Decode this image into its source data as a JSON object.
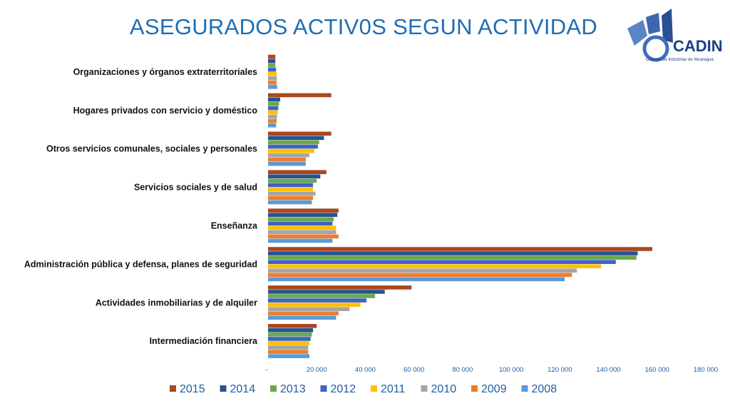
{
  "title": "ASEGURADOS ACTIV0S SEGUN ACTIVIDAD",
  "logo": {
    "name": "CADIN",
    "subtitle": "Cámara de Industrias de Nicaragua"
  },
  "chart_data": {
    "type": "bar",
    "orientation": "horizontal",
    "categories": [
      "Intermediación financiera",
      "Actividades inmobiliarias y de alquiler",
      "Administración pública y defensa, planes de seguridad",
      "Enseñanza",
      "Servicios sociales y de salud",
      "Otros servicios comunales, sociales y personales",
      "Hogares privados con servicio y doméstico",
      "Organizaciones y órganos extraterritoriales"
    ],
    "series": [
      {
        "name": "2015",
        "color": "#a9471f",
        "values": [
          20000,
          59000,
          158000,
          29000,
          24000,
          26000,
          26000,
          3000
        ]
      },
      {
        "name": "2014",
        "color": "#27548f",
        "values": [
          18500,
          48000,
          152000,
          28500,
          21500,
          23000,
          5000,
          3000
        ]
      },
      {
        "name": "2013",
        "color": "#6aa84f",
        "values": [
          18000,
          44000,
          151500,
          27000,
          20000,
          21000,
          4500,
          3000
        ]
      },
      {
        "name": "2012",
        "color": "#3f63c4",
        "values": [
          17500,
          40500,
          143000,
          26500,
          18500,
          20500,
          4200,
          3300
        ]
      },
      {
        "name": "2011",
        "color": "#ffc000",
        "values": [
          17000,
          38000,
          137000,
          28000,
          18500,
          19000,
          4000,
          3600
        ]
      },
      {
        "name": "2010",
        "color": "#a5a5a5",
        "values": [
          16500,
          33500,
          127000,
          28000,
          19500,
          17000,
          3700,
          3600
        ]
      },
      {
        "name": "2009",
        "color": "#ed7d31",
        "values": [
          16500,
          29000,
          125000,
          29000,
          18500,
          15500,
          3500,
          3500
        ]
      },
      {
        "name": "2008",
        "color": "#5b9bd5",
        "values": [
          17000,
          28000,
          122000,
          26500,
          18000,
          15500,
          3300,
          3800
        ]
      }
    ],
    "x_ticks": [
      "-",
      "20 000",
      "40 000",
      "60 000",
      "80 000",
      "100 000",
      "120 000",
      "140 000",
      "160 000",
      "180 000"
    ],
    "xlim": [
      0,
      180000
    ],
    "legend_position": "bottom",
    "grid": false
  }
}
